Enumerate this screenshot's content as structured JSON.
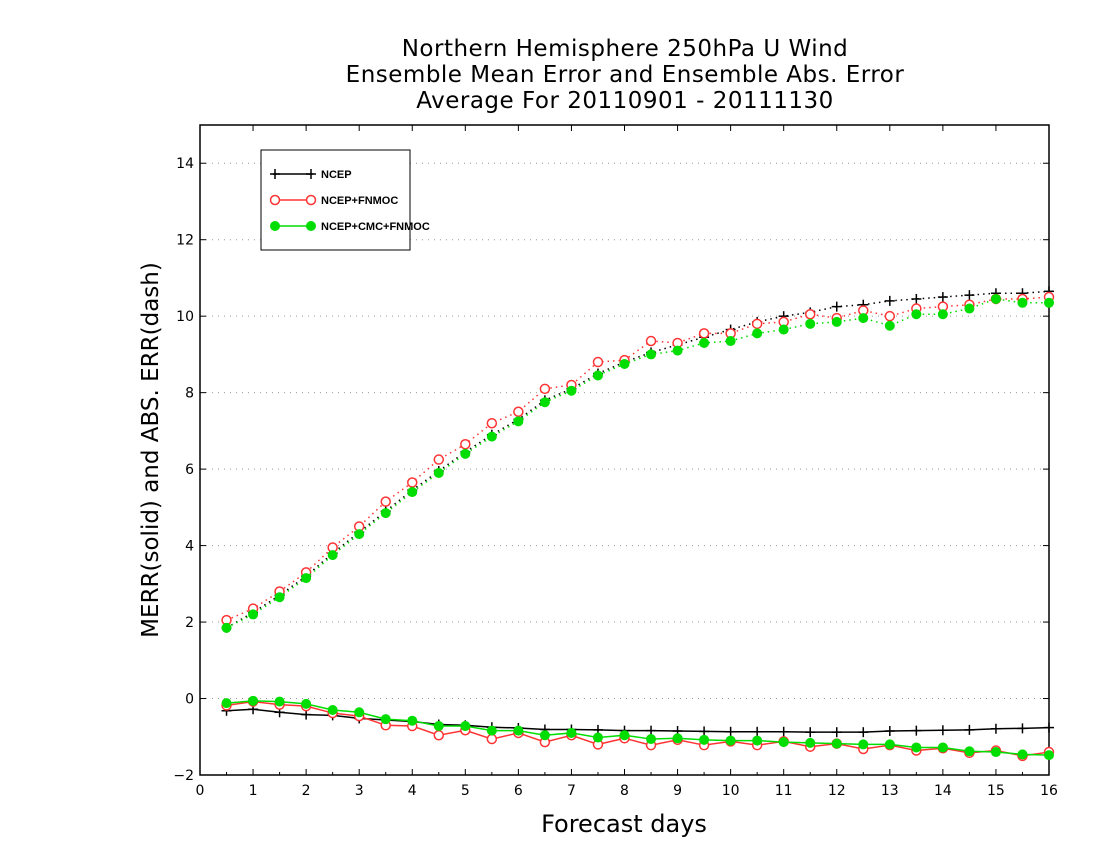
{
  "chart_data": {
    "type": "line",
    "title": [
      "Northern Hemisphere 250hPa U Wind",
      "Ensemble Mean Error and Ensemble Abs. Error",
      "Average For 20110901 - 20111130"
    ],
    "xlabel": "Forecast days",
    "ylabel": "MERR(solid) and ABS. ERR(dash)",
    "xlim": [
      0,
      16
    ],
    "ylim": [
      -2,
      15
    ],
    "xticks": [
      0,
      1,
      2,
      3,
      4,
      5,
      6,
      7,
      8,
      9,
      10,
      11,
      12,
      13,
      14,
      15,
      16
    ],
    "yticks": [
      -2,
      0,
      2,
      4,
      6,
      8,
      10,
      12,
      14
    ],
    "ytick_labels": [
      "−2",
      "0",
      "2",
      "4",
      "6",
      "8",
      "10",
      "12",
      "14"
    ],
    "grid": "horizontal dotted",
    "legend_position": "top-left",
    "x": [
      0.5,
      1,
      1.5,
      2,
      2.5,
      3,
      3.5,
      4,
      4.5,
      5,
      5.5,
      6,
      6.5,
      7,
      7.5,
      8,
      8.5,
      9,
      9.5,
      10,
      10.5,
      11,
      11.5,
      12,
      12.5,
      13,
      13.5,
      14,
      14.5,
      15,
      15.5,
      16
    ],
    "series": [
      {
        "name": "NCEP",
        "color": "#000000",
        "marker": "plus",
        "abs_error": [
          1.85,
          2.25,
          2.7,
          3.2,
          3.8,
          4.35,
          4.9,
          5.45,
          5.95,
          6.45,
          6.9,
          7.3,
          7.8,
          8.1,
          8.5,
          8.8,
          9.05,
          9.25,
          9.45,
          9.65,
          9.85,
          10.0,
          10.1,
          10.25,
          10.3,
          10.4,
          10.45,
          10.5,
          10.55,
          10.6,
          10.6,
          10.65
        ],
        "mean_error": [
          -0.32,
          -0.28,
          -0.36,
          -0.42,
          -0.44,
          -0.52,
          -0.56,
          -0.6,
          -0.68,
          -0.7,
          -0.75,
          -0.77,
          -0.81,
          -0.81,
          -0.82,
          -0.84,
          -0.84,
          -0.85,
          -0.86,
          -0.87,
          -0.87,
          -0.87,
          -0.88,
          -0.88,
          -0.88,
          -0.85,
          -0.84,
          -0.83,
          -0.82,
          -0.79,
          -0.78,
          -0.76
        ]
      },
      {
        "name": "NCEP+FNMOC",
        "color": "#ff3333",
        "marker": "open-circle",
        "abs_error": [
          2.05,
          2.35,
          2.8,
          3.3,
          3.95,
          4.5,
          5.15,
          5.65,
          6.25,
          6.65,
          7.2,
          7.5,
          8.1,
          8.2,
          8.8,
          8.85,
          9.35,
          9.3,
          9.55,
          9.55,
          9.8,
          9.85,
          10.05,
          9.95,
          10.15,
          10.0,
          10.2,
          10.25,
          10.3,
          10.45,
          10.45,
          10.5
        ],
        "mean_error": [
          -0.18,
          -0.08,
          -0.16,
          -0.2,
          -0.38,
          -0.46,
          -0.7,
          -0.72,
          -0.96,
          -0.83,
          -1.06,
          -0.9,
          -1.14,
          -0.96,
          -1.2,
          -1.04,
          -1.22,
          -1.08,
          -1.22,
          -1.12,
          -1.22,
          -1.12,
          -1.26,
          -1.18,
          -1.32,
          -1.22,
          -1.36,
          -1.3,
          -1.42,
          -1.36,
          -1.5,
          -1.4
        ]
      },
      {
        "name": "NCEP+CMC+FNMOC",
        "color": "#00dd00",
        "marker": "filled-circle",
        "abs_error": [
          1.85,
          2.2,
          2.65,
          3.15,
          3.75,
          4.3,
          4.85,
          5.4,
          5.9,
          6.4,
          6.85,
          7.25,
          7.75,
          8.05,
          8.45,
          8.75,
          9.0,
          9.1,
          9.3,
          9.35,
          9.55,
          9.65,
          9.8,
          9.85,
          9.95,
          9.75,
          10.05,
          10.05,
          10.2,
          10.45,
          10.35,
          10.35
        ],
        "mean_error": [
          -0.12,
          -0.06,
          -0.08,
          -0.14,
          -0.3,
          -0.36,
          -0.54,
          -0.58,
          -0.72,
          -0.72,
          -0.84,
          -0.84,
          -0.96,
          -0.9,
          -1.02,
          -0.96,
          -1.06,
          -1.04,
          -1.08,
          -1.1,
          -1.1,
          -1.14,
          -1.16,
          -1.18,
          -1.2,
          -1.2,
          -1.28,
          -1.28,
          -1.38,
          -1.4,
          -1.46,
          -1.48
        ]
      }
    ]
  }
}
